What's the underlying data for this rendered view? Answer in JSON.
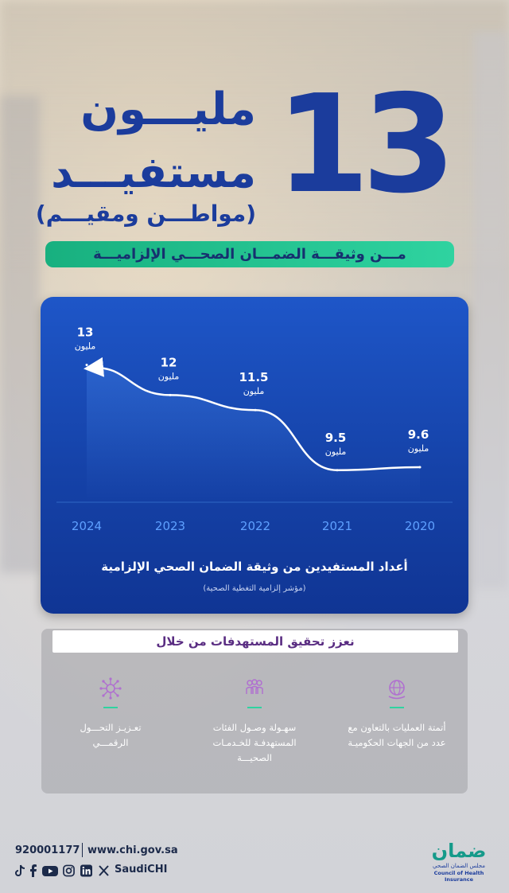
{
  "hero": {
    "number": "13",
    "line1": "مليـــون",
    "line2": "مستفيـــد",
    "line3": "(مواطـــن ومقيـــم)"
  },
  "banner": "مـــن وثيقـــة الضمـــان الصحـــي الإلزاميـــة",
  "chart_data": {
    "type": "line",
    "x": [
      "2024",
      "2023",
      "2022",
      "2021",
      "2020"
    ],
    "values": [
      13,
      12,
      11.5,
      9.5,
      9.6
    ],
    "value_labels": [
      "13",
      "12",
      "11.5",
      "9.5",
      "9.6"
    ],
    "unit_label": "مليون",
    "title": "أعداد المستفيدين من وثيقة الضمان الصحي الإلزامية",
    "subtitle": "(مؤشر إلزامية التغطية الصحية)",
    "colors": {
      "line": "#ffffff",
      "year": "#5ea0ff",
      "grid": "#4b8fe8"
    }
  },
  "goals": {
    "heading": "نعزز تحقيق المستهدفات من خلال",
    "items": [
      {
        "icon": "globe-hand-icon",
        "text1": "أتمتة العمليات بالتعاون مع",
        "text2": "عدد من الجهات الحكوميـة"
      },
      {
        "icon": "people-group-icon",
        "text1": "سهـولة وصـول الفئات",
        "text2": "المستهدفـة للخـدمـات",
        "text3": "الصحيـــة"
      },
      {
        "icon": "network-node-icon",
        "text1": "تعـزيـز التحـــول",
        "text2": "الرقمـــي"
      }
    ]
  },
  "footer": {
    "phone": "920001177",
    "url": "www.chi.gov.sa",
    "handle": "SaudiCHI",
    "social_icons": [
      "tiktok-icon",
      "facebook-icon",
      "youtube-icon",
      "instagram-icon",
      "linkedin-icon",
      "x-icon"
    ]
  },
  "logo": {
    "arabic": "ضمان",
    "line1": "مجلس الضمان الصحي",
    "line2": "Council of Health Insurance"
  }
}
